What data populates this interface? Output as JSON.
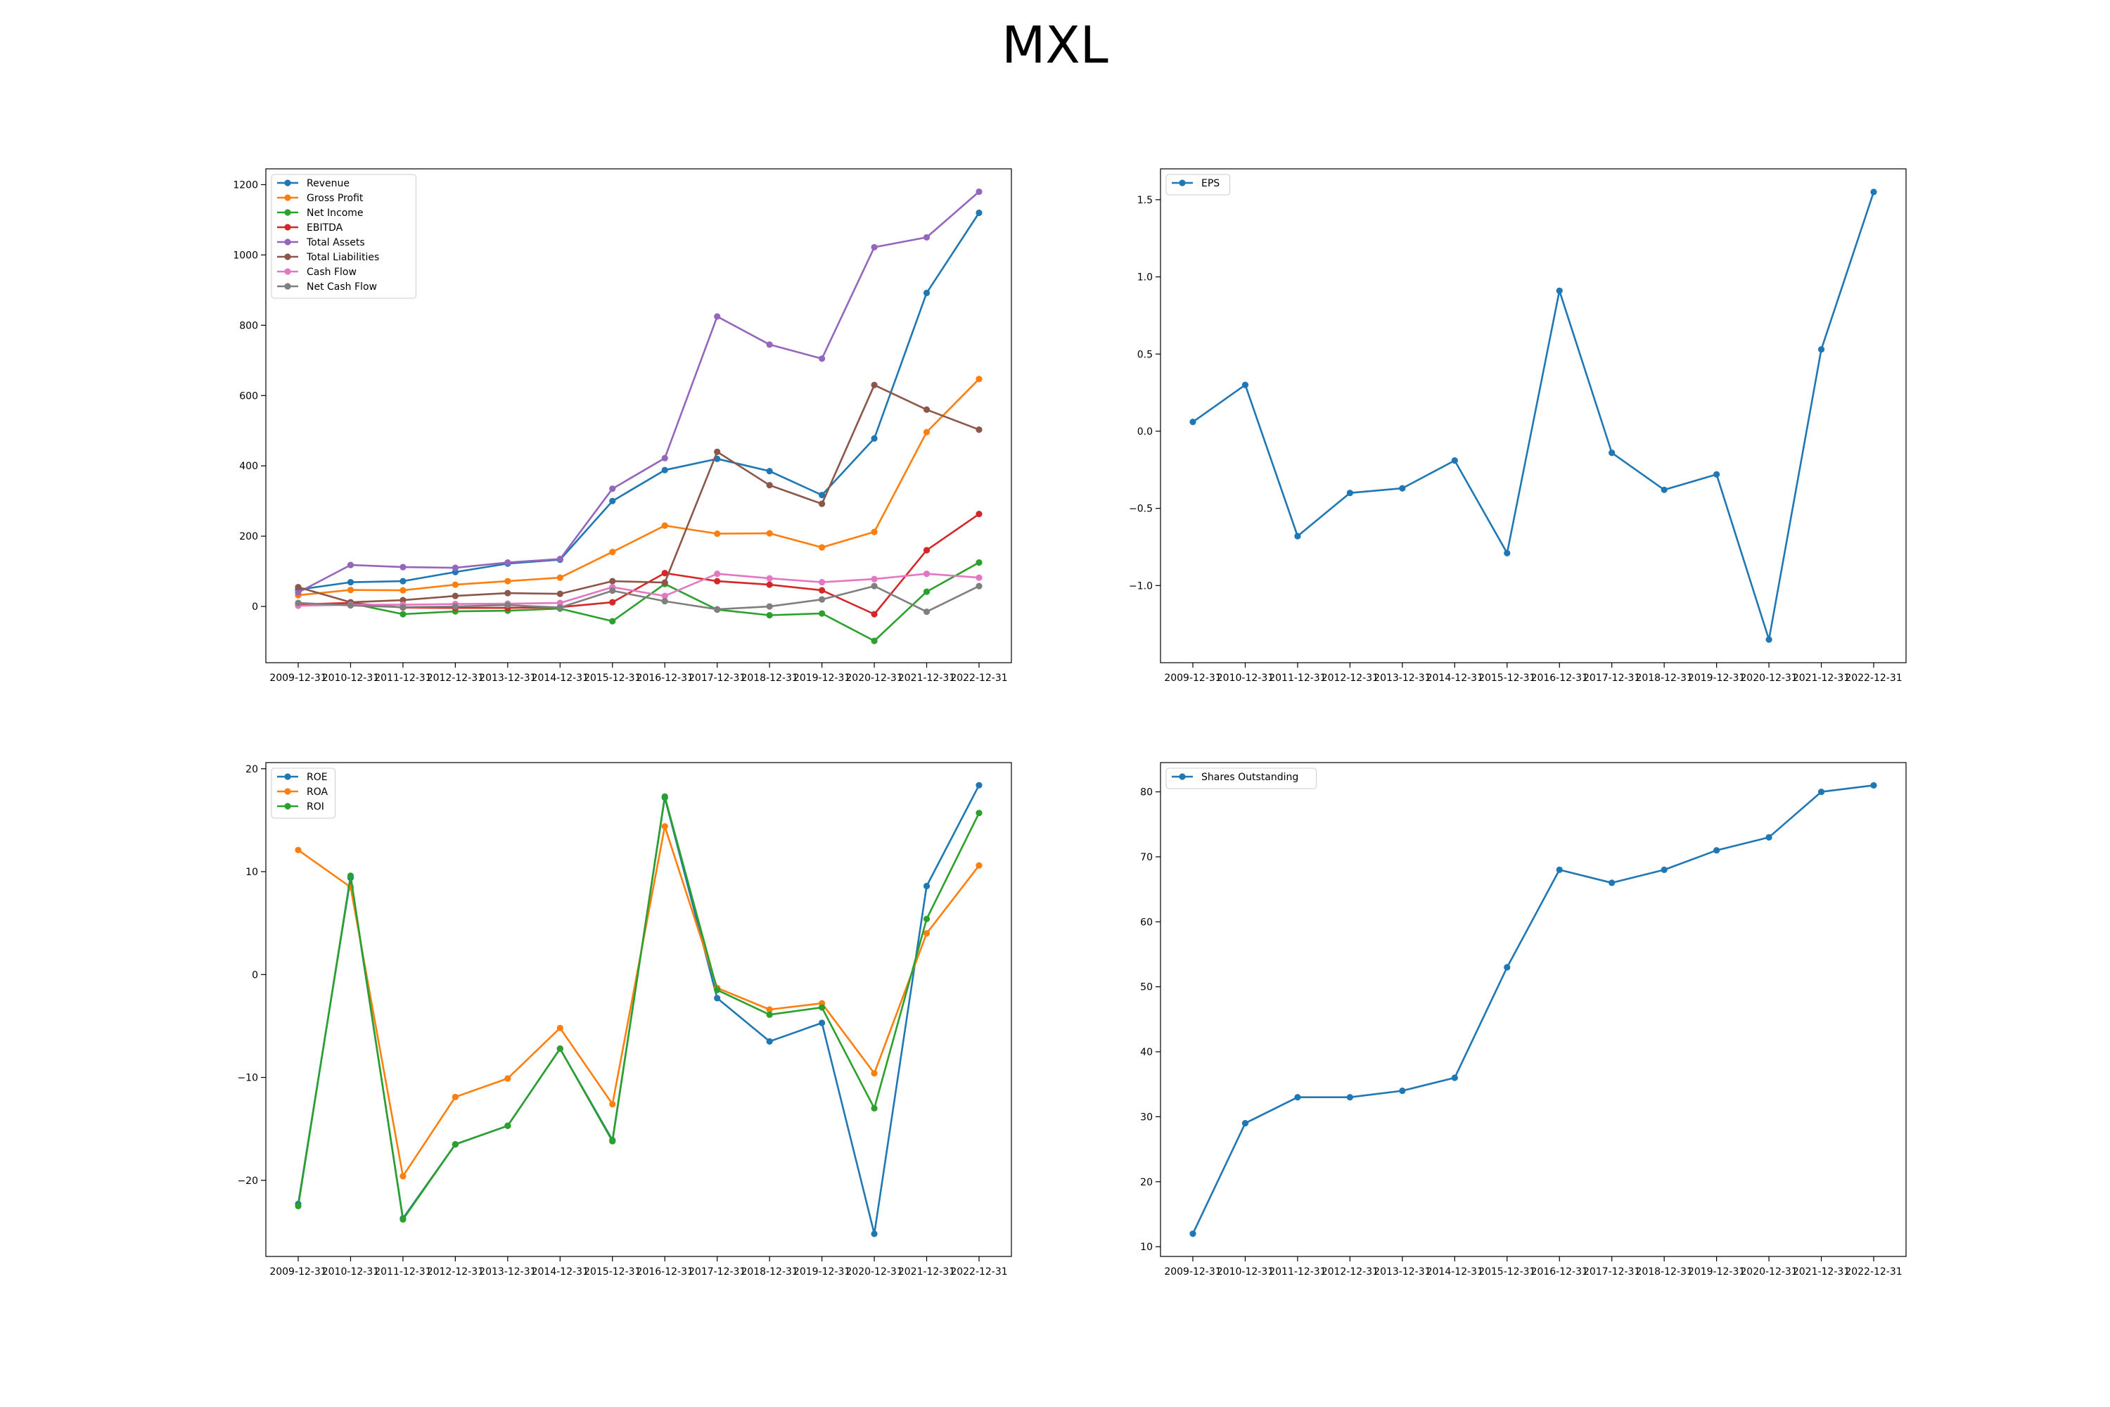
{
  "title": "MXL",
  "chart_data": [
    {
      "type": "line",
      "x": [
        "2009-12-31",
        "2010-12-31",
        "2011-12-31",
        "2012-12-31",
        "2013-12-31",
        "2014-12-31",
        "2015-12-31",
        "2016-12-31",
        "2017-12-31",
        "2018-12-31",
        "2019-12-31",
        "2020-12-31",
        "2021-12-31",
        "2022-12-31"
      ],
      "ylim": [
        -160,
        1245
      ],
      "yticks": [
        0,
        200,
        400,
        600,
        800,
        1000,
        1200
      ],
      "legend_position": "upper-left",
      "grid": false,
      "series": [
        {
          "name": "Revenue",
          "color": "#1f77b4",
          "values": [
            48,
            69,
            72,
            98,
            122,
            133,
            300,
            388,
            420,
            385,
            317,
            478,
            892,
            1120
          ]
        },
        {
          "name": "Gross Profit",
          "color": "#ff7f0e",
          "values": [
            32,
            47,
            46,
            62,
            72,
            82,
            155,
            230,
            207,
            208,
            168,
            212,
            496,
            647
          ]
        },
        {
          "name": "Net Income",
          "color": "#2ca02c",
          "values": [
            3,
            9,
            -22,
            -14,
            -12,
            -6,
            -42,
            64,
            -9,
            -25,
            -20,
            -98,
            42,
            125
          ]
        },
        {
          "name": "EBITDA",
          "color": "#d62728",
          "values": [
            6,
            10,
            -3,
            -4,
            -4,
            -2,
            12,
            95,
            72,
            62,
            46,
            -22,
            160,
            263
          ]
        },
        {
          "name": "Total Assets",
          "color": "#9467bd",
          "values": [
            40,
            118,
            112,
            110,
            125,
            135,
            335,
            422,
            825,
            745,
            705,
            1022,
            1050,
            1180
          ]
        },
        {
          "name": "Total Liabilities",
          "color": "#8c564b",
          "values": [
            55,
            12,
            18,
            30,
            38,
            36,
            72,
            68,
            440,
            345,
            292,
            630,
            560,
            503
          ]
        },
        {
          "name": "Cash Flow",
          "color": "#e377c2",
          "values": [
            2,
            5,
            5,
            7,
            8,
            10,
            55,
            30,
            93,
            80,
            69,
            78,
            93,
            82
          ]
        },
        {
          "name": "Net Cash Flow",
          "color": "#7f7f7f",
          "values": [
            10,
            3,
            -2,
            0,
            4,
            -3,
            45,
            15,
            -8,
            0,
            20,
            58,
            -15,
            58
          ]
        }
      ]
    },
    {
      "type": "line",
      "x": [
        "2009-12-31",
        "2010-12-31",
        "2011-12-31",
        "2012-12-31",
        "2013-12-31",
        "2014-12-31",
        "2015-12-31",
        "2016-12-31",
        "2017-12-31",
        "2018-12-31",
        "2019-12-31",
        "2020-12-31",
        "2021-12-31",
        "2022-12-31"
      ],
      "ylim": [
        -1.5,
        1.7
      ],
      "yticks": [
        -1.0,
        -0.5,
        0.0,
        0.5,
        1.0,
        1.5
      ],
      "legend_position": "upper-left",
      "grid": false,
      "series": [
        {
          "name": "EPS",
          "color": "#1f77b4",
          "values": [
            0.06,
            0.3,
            -0.68,
            -0.4,
            -0.37,
            -0.19,
            -0.79,
            0.91,
            -0.14,
            -0.38,
            -0.28,
            -1.35,
            0.53,
            1.55
          ]
        }
      ]
    },
    {
      "type": "line",
      "x": [
        "2009-12-31",
        "2010-12-31",
        "2011-12-31",
        "2012-12-31",
        "2013-12-31",
        "2014-12-31",
        "2015-12-31",
        "2016-12-31",
        "2017-12-31",
        "2018-12-31",
        "2019-12-31",
        "2020-12-31",
        "2021-12-31",
        "2022-12-31"
      ],
      "ylim": [
        -27.4,
        20.6
      ],
      "yticks": [
        -20,
        -10,
        0,
        10,
        20
      ],
      "legend_position": "upper-left",
      "grid": false,
      "series": [
        {
          "name": "ROE",
          "color": "#1f77b4",
          "values": [
            -22.3,
            9.4,
            -23.7,
            -16.5,
            -14.7,
            -7.2,
            -16.1,
            17.2,
            -2.3,
            -6.5,
            -4.7,
            -25.2,
            8.6,
            18.4
          ]
        },
        {
          "name": "ROA",
          "color": "#ff7f0e",
          "values": [
            12.1,
            8.5,
            -19.6,
            -11.9,
            -10.1,
            -5.2,
            -12.6,
            14.4,
            -1.3,
            -3.4,
            -2.8,
            -9.6,
            4.0,
            10.6
          ]
        },
        {
          "name": "ROI",
          "color": "#2ca02c",
          "values": [
            -22.5,
            9.6,
            -23.8,
            -16.5,
            -14.7,
            -7.2,
            -16.2,
            17.3,
            -1.5,
            -3.9,
            -3.2,
            -13.0,
            5.4,
            15.7
          ]
        }
      ]
    },
    {
      "type": "line",
      "x": [
        "2009-12-31",
        "2010-12-31",
        "2011-12-31",
        "2012-12-31",
        "2013-12-31",
        "2014-12-31",
        "2015-12-31",
        "2016-12-31",
        "2017-12-31",
        "2018-12-31",
        "2019-12-31",
        "2020-12-31",
        "2021-12-31",
        "2022-12-31"
      ],
      "ylim": [
        8.5,
        84.5
      ],
      "yticks": [
        10,
        20,
        30,
        40,
        50,
        60,
        70,
        80
      ],
      "legend_position": "upper-left",
      "grid": false,
      "series": [
        {
          "name": "Shares Outstanding",
          "color": "#1f77b4",
          "values": [
            12,
            29,
            33,
            33,
            34,
            36,
            53,
            68,
            66,
            68,
            71,
            73,
            80,
            81
          ]
        }
      ]
    }
  ]
}
